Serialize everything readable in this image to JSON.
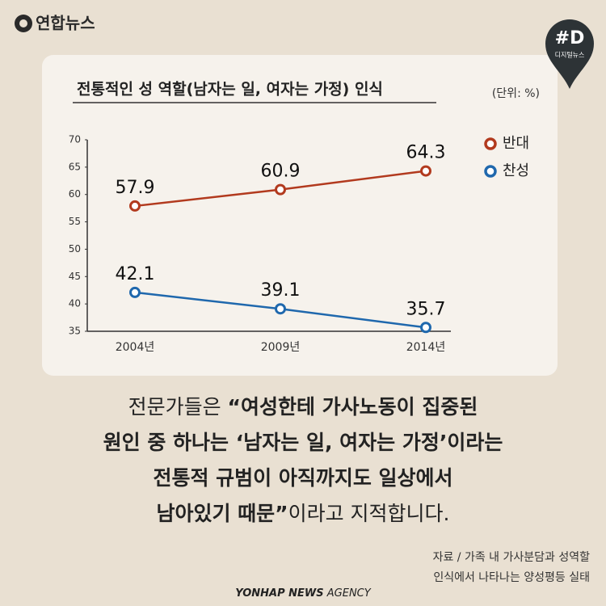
{
  "logo": "연합뉴스",
  "badge": {
    "mark": "#D",
    "text": "디지털뉴스"
  },
  "chart_data": {
    "type": "line",
    "title": "전통적인 성 역할(남자는 일, 여자는 가정) 인식",
    "unit": "(단위: %)",
    "categories": [
      "2004년",
      "2009년",
      "2014년"
    ],
    "series": [
      {
        "name": "반대",
        "color": "#b23a1e",
        "values": [
          57.9,
          60.9,
          64.3
        ]
      },
      {
        "name": "찬성",
        "color": "#1f68ad",
        "values": [
          42.1,
          39.1,
          35.7
        ]
      }
    ],
    "ylim": [
      35,
      70
    ],
    "yticks": [
      35,
      40,
      45,
      50,
      55,
      60,
      65,
      70
    ],
    "grid": false,
    "legend": "upper right"
  },
  "caption": {
    "lines": [
      [
        {
          "text": "전문가들은 ",
          "bold": false
        },
        {
          "text": "“여성한테 가사노동이 집중된",
          "bold": true
        }
      ],
      [
        {
          "text": "원인 중 하나는 ‘남자는 일, 여자는 가정’이라는",
          "bold": true
        }
      ],
      [
        {
          "text": "전통적 규범이 아직까지도 일상에서",
          "bold": true
        }
      ],
      [
        {
          "text": "남아있기 때문”",
          "bold": true
        },
        {
          "text": "이라고 지적합니다.",
          "bold": false
        }
      ]
    ]
  },
  "source": [
    "자료 / 가족 내 가사분담과 성역할",
    "인식에서 나타나는 양성평등 실태"
  ],
  "agency": {
    "brand": "YONHAP NEWS",
    "suffix": "AGENCY"
  }
}
